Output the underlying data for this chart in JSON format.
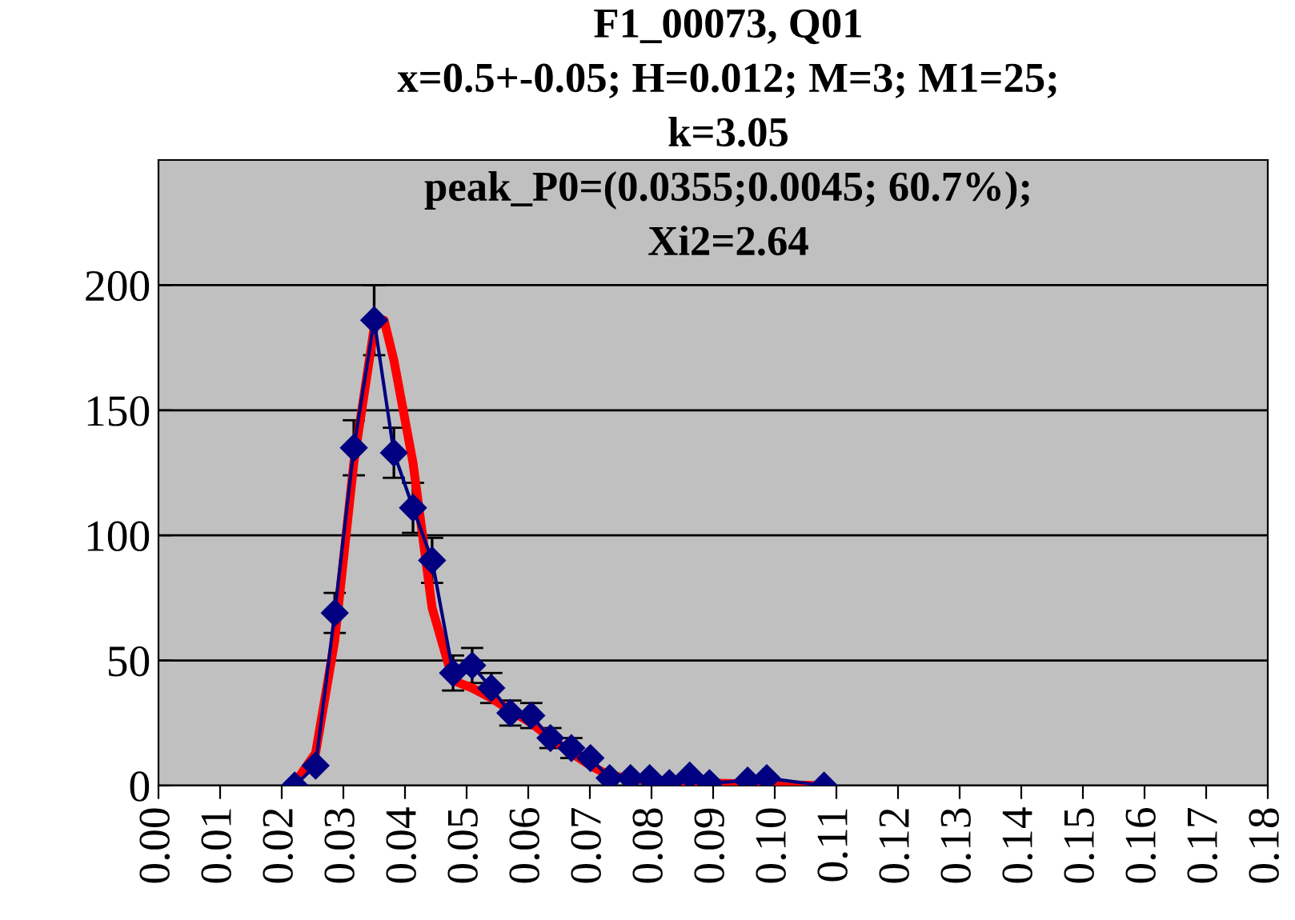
{
  "chart_data": {
    "type": "line",
    "title": "F1_00073, Q01\nx=0.5+-0.05; H=0.012; M=3; M1=25;\nk=3.05\npeak_P0=(0.0355;0.0045; 60.7%);\nXi2=2.64",
    "xlim": [
      0,
      0.18
    ],
    "xticks": [
      {
        "value": 0,
        "label": "0.00"
      },
      {
        "value": 0.01,
        "label": "0.01"
      },
      {
        "value": 0.02,
        "label": "0.02"
      },
      {
        "value": 0.03,
        "label": "0.03"
      },
      {
        "value": 0.04,
        "label": "0.04"
      },
      {
        "value": 0.05,
        "label": "0.05"
      },
      {
        "value": 0.06,
        "label": "0.06"
      },
      {
        "value": 0.07,
        "label": "0.07"
      },
      {
        "value": 0.08,
        "label": "0.08"
      },
      {
        "value": 0.09,
        "label": "0.09"
      },
      {
        "value": 0.1,
        "label": "0.10"
      },
      {
        "value": 0.11,
        "label": "0.11"
      },
      {
        "value": 0.12,
        "label": "0.12"
      },
      {
        "value": 0.13,
        "label": "0.13"
      },
      {
        "value": 0.14,
        "label": "0.14"
      },
      {
        "value": 0.15,
        "label": "0.15"
      },
      {
        "value": 0.16,
        "label": "0.16"
      },
      {
        "value": 0.17,
        "label": "0.17"
      },
      {
        "value": 0.18,
        "label": "0.18"
      }
    ],
    "ylim": [
      0,
      250
    ],
    "yticks": [
      0,
      50,
      100,
      150,
      200
    ],
    "grid": "y",
    "series": [
      {
        "color": "#ff0000",
        "marker": "none",
        "x": [
          0.0221,
          0.0255,
          0.0286,
          0.0317,
          0.035,
          0.0366,
          0.0382,
          0.0413,
          0.0444,
          0.0478,
          0.0509,
          0.054,
          0.0571,
          0.0605,
          0.0636,
          0.067,
          0.0701,
          0.0732,
          0.0797,
          0.0894,
          0.108
        ],
        "values": [
          1,
          13,
          58,
          129,
          183,
          186,
          170,
          129,
          71,
          42,
          39,
          35,
          30,
          25,
          19,
          13,
          8,
          4,
          2,
          1,
          0
        ]
      },
      {
        "color": "#000080",
        "marker": "diamond",
        "x": [
          0.0221,
          0.0255,
          0.0286,
          0.0317,
          0.035,
          0.0382,
          0.0413,
          0.0444,
          0.0478,
          0.0509,
          0.054,
          0.0571,
          0.0605,
          0.0636,
          0.067,
          0.0701,
          0.0732,
          0.0766,
          0.0797,
          0.0829,
          0.0862,
          0.0894,
          0.0956,
          0.0987,
          0.108
        ],
        "values": [
          0,
          8,
          69,
          135,
          186,
          133,
          111,
          90,
          45,
          48,
          39,
          29,
          28,
          19,
          15,
          11,
          3,
          3,
          3,
          1,
          4,
          1,
          2,
          3,
          0
        ],
        "errors": [
          null,
          null,
          8,
          11,
          14,
          10,
          10,
          9,
          7,
          7,
          6,
          5,
          5,
          4,
          4,
          null,
          null,
          null,
          null,
          null,
          null,
          null,
          null,
          null,
          null
        ]
      }
    ]
  }
}
